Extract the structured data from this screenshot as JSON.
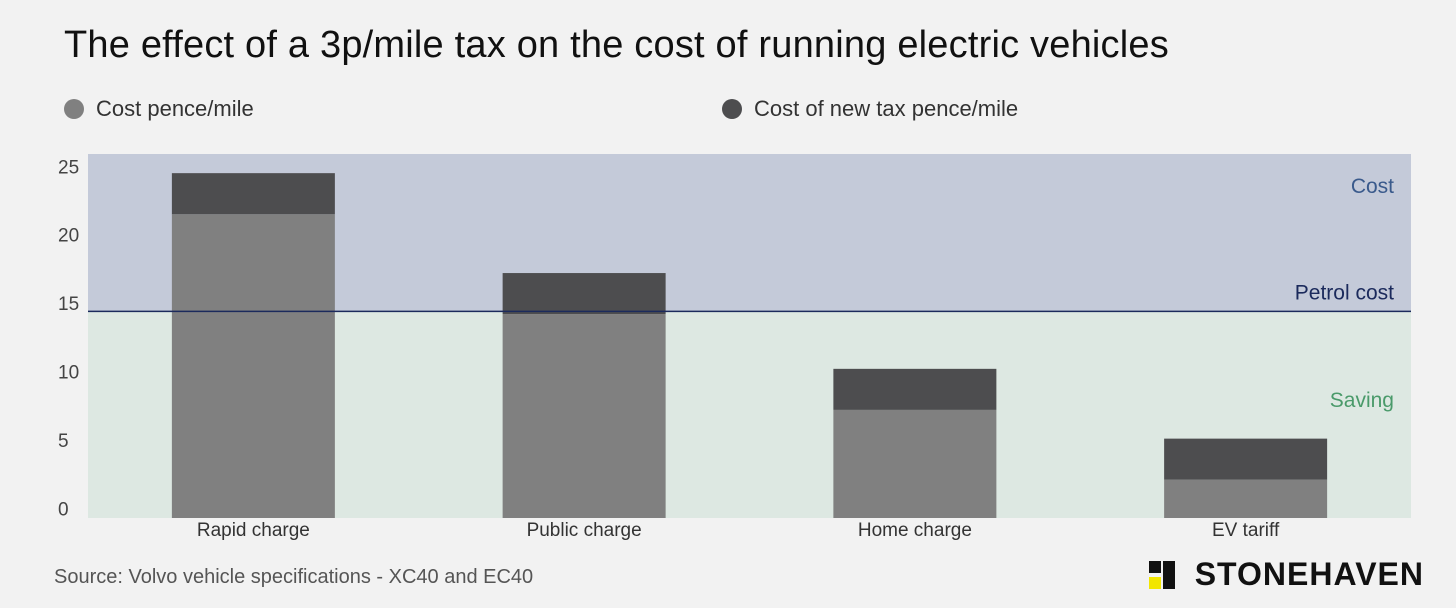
{
  "title": "The effect of a 3p/mile tax on the cost of running electric vehicles",
  "legend": {
    "base": "Cost pence/mile",
    "tax": "Cost of new tax pence/mile"
  },
  "colors": {
    "background": "#f2f2f2",
    "cost_zone": "#c4cad9",
    "saving_zone": "#dde8e2",
    "base_bar": "#808080",
    "tax_bar": "#4d4d4f",
    "petrol_line": "#1b2a5c",
    "cost_label": "#3a5a8c",
    "saving_label": "#4a9a6a"
  },
  "chart_data": {
    "type": "bar",
    "stacked": true,
    "title": "The effect of a 3p/mile tax on the cost of running electric vehicles",
    "categories": [
      "Rapid charge",
      "Public charge",
      "Home charge",
      "EV tariff"
    ],
    "series": [
      {
        "name": "Cost pence/mile",
        "values": [
          21.5,
          14.2,
          7.2,
          2.1
        ]
      },
      {
        "name": "Cost of new tax pence/mile",
        "values": [
          3.0,
          3.0,
          3.0,
          3.0
        ]
      }
    ],
    "yticks": [
      0,
      5,
      10,
      15,
      20,
      25
    ],
    "ylim": [
      -0.7,
      25.9
    ],
    "reference_line": {
      "label": "Petrol cost",
      "value": 14.4
    },
    "zones": {
      "above": "Cost",
      "below": "Saving"
    },
    "xlabel": "",
    "ylabel": ""
  },
  "source": "Source: Volvo vehicle specifications - XC40 and EC40",
  "brand": "STONEHAVEN"
}
